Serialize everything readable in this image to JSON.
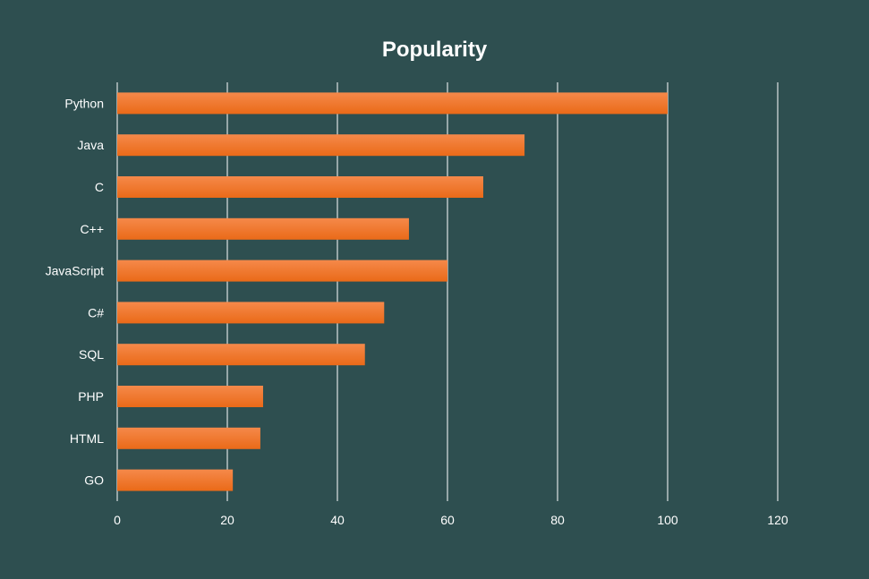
{
  "chart_data": {
    "type": "bar",
    "orientation": "horizontal",
    "title": "Popularity",
    "xlabel": "",
    "ylabel": "",
    "categories": [
      "Python",
      "Java",
      "C",
      "C++",
      "JavaScript",
      "C#",
      "SQL",
      "PHP",
      "HTML",
      "GO"
    ],
    "values": [
      100,
      74,
      66.5,
      53,
      60,
      48.5,
      45,
      26.5,
      26,
      21
    ],
    "xlim": [
      0,
      120
    ],
    "xticks": [
      "0",
      "20",
      "40",
      "60",
      "80",
      "100",
      "120"
    ],
    "grid": "vertical",
    "legend": "none",
    "colors": {
      "background": "#2e4f50",
      "bar_top": "#f5894a",
      "bar_bottom": "#ea6a18",
      "grid": "#ffffff",
      "text": "#ffffff"
    }
  }
}
